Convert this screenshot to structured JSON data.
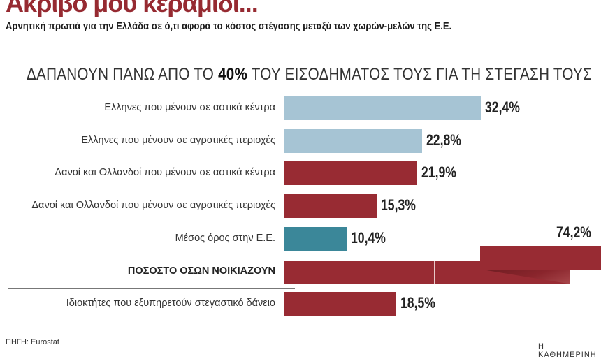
{
  "title": "Ακριβό μου κεραμίδι...",
  "subtitle": "Αρνητική πρωτιά για την Ελλάδα σε ό,τι αφορά το κόστος στέγασης μεταξύ των χωρών-μελών της Ε.Ε.",
  "source": "ΠΗΓΗ: Eurostat",
  "brand": "Η ΚΑΘΗΜΕΡΙΝΗ",
  "colors": {
    "greece": "#a6c4d4",
    "other": "#982b33",
    "eu": "#3b8799"
  },
  "chart_data": {
    "type": "bar",
    "orientation": "horizontal",
    "title_parts": [
      "ΔΑΠΑΝΟΥΝ ΠΑΝΩ ΑΠΟ ΤΟ ",
      "40%",
      " ΤΟΥ ΕΙΣΟΔΗΜΑΤΟΣ ΤΟΥΣ ΓΙΑ ΤΗ ΣΤΕΓΑΣΗ ΤΟΥΣ"
    ],
    "unit": "%",
    "categories": [
      "Ελληνες που μένουν σε αστικά κέντρα",
      "Ελληνες που μένουν σε αγροτικές περιοχές",
      "Δανοί και Ολλανδοί που μένουν σε αστικά κέντρα",
      "Δανοί και Ολλανδοί που μένουν σε αγροτικές περιοχές",
      "Μέσος όρος στην Ε.Ε.",
      "ΠΟΣΟΣΤΟ ΟΣΩΝ ΝΟΙΚΙΑΖΟΥΝ",
      "Ιδιοκτήτες που εξυπηρετούν στεγαστικό δάνειο"
    ],
    "values": [
      32.4,
      22.8,
      21.9,
      15.3,
      10.4,
      74.2,
      18.5
    ],
    "value_labels": [
      "32,4%",
      "22,8%",
      "21,9%",
      "15,3%",
      "10,4%",
      "74,2%",
      "18,5%"
    ],
    "groups": [
      "greece",
      "greece",
      "other",
      "other",
      "eu",
      "other",
      "other"
    ]
  }
}
